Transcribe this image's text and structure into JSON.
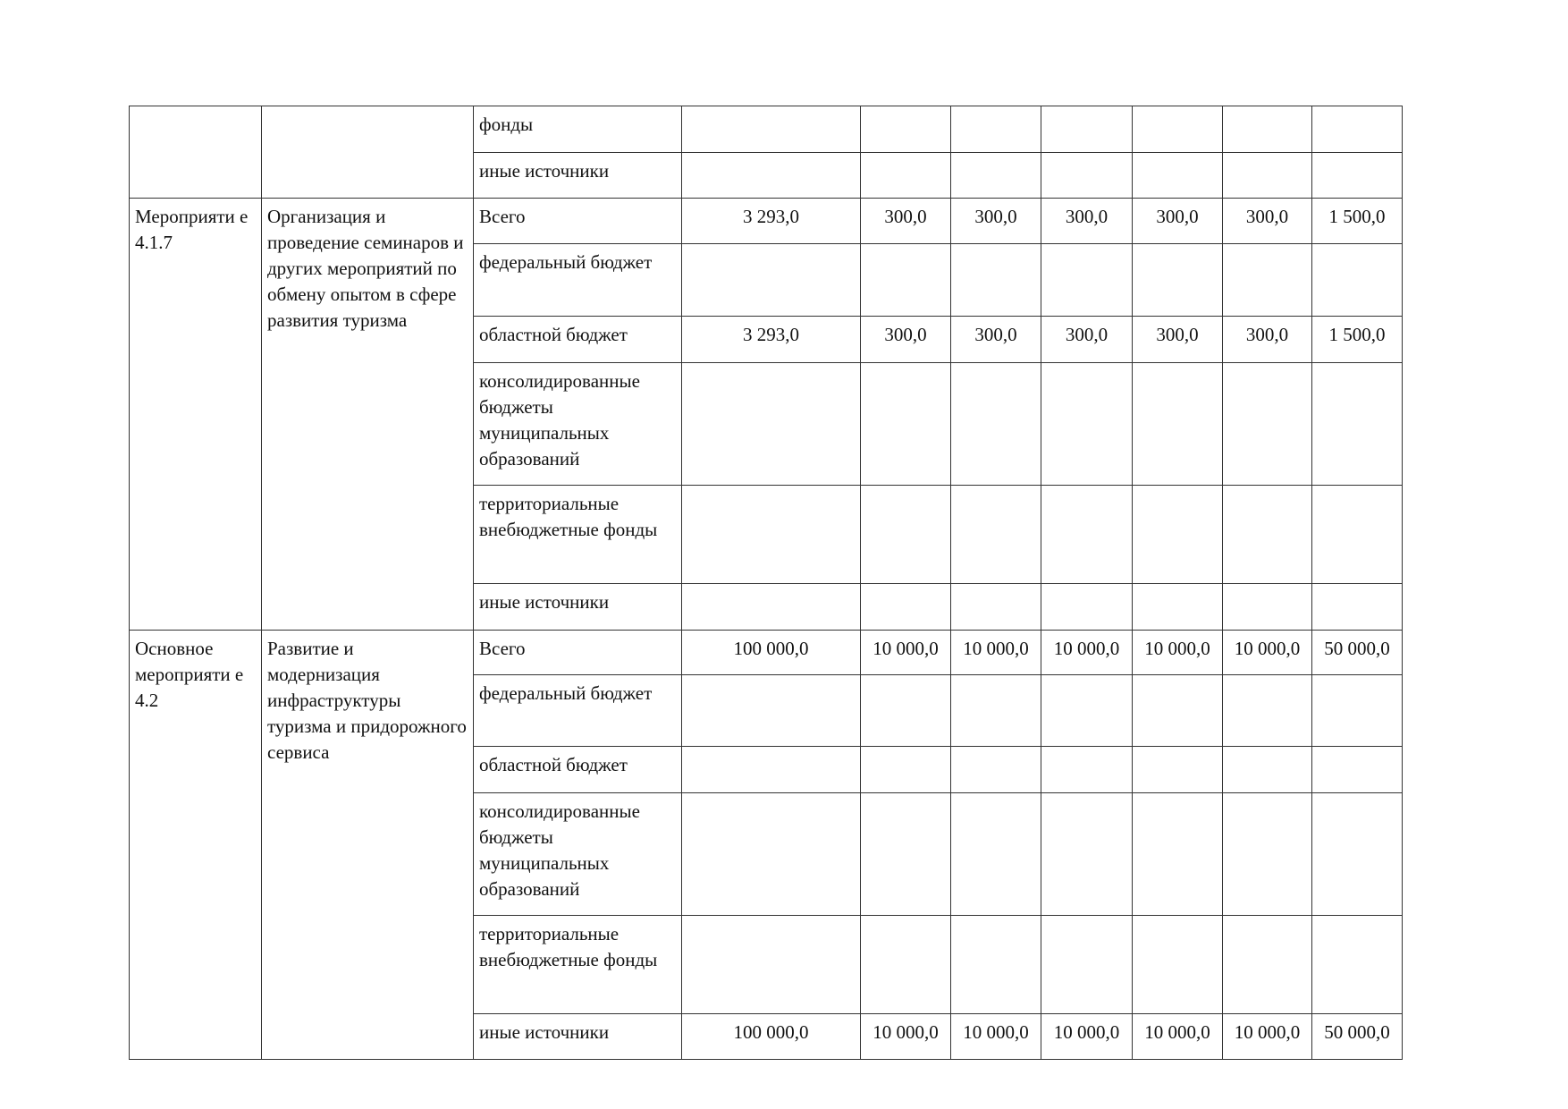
{
  "sections": [
    {
      "code": "",
      "name": "",
      "rows": [
        {
          "source": "фонды",
          "values": [
            "",
            "",
            "",
            "",
            "",
            "",
            ""
          ]
        },
        {
          "source": "иные источники",
          "values": [
            "",
            "",
            "",
            "",
            "",
            "",
            ""
          ]
        }
      ]
    },
    {
      "code": "Мероприяти е 4.1.7",
      "name": "Организация и проведение семинаров и других мероприятий по обмену опытом в сфере развития туризма",
      "rows": [
        {
          "source": "Всего",
          "values": [
            "3 293,0",
            "300,0",
            "300,0",
            "300,0",
            "300,0",
            "300,0",
            "1 500,0"
          ]
        },
        {
          "source": "федеральный бюджет",
          "values": [
            "",
            "",
            "",
            "",
            "",
            "",
            ""
          ]
        },
        {
          "source": "областной бюджет",
          "values": [
            "3 293,0",
            "300,0",
            "300,0",
            "300,0",
            "300,0",
            "300,0",
            "1 500,0"
          ]
        },
        {
          "source": "консолидированные бюджеты муниципальных образований",
          "values": [
            "",
            "",
            "",
            "",
            "",
            "",
            ""
          ]
        },
        {
          "source": "территориальные внебюджетные фонды",
          "values": [
            "",
            "",
            "",
            "",
            "",
            "",
            ""
          ]
        },
        {
          "source": "иные источники",
          "values": [
            "",
            "",
            "",
            "",
            "",
            "",
            ""
          ]
        }
      ]
    },
    {
      "code": "Основное мероприяти е 4.2",
      "name": "Развитие и модернизация инфраструктуры туризма и придорожного сервиса",
      "rows": [
        {
          "source": "Всего",
          "values": [
            "100 000,0",
            "10 000,0",
            "10 000,0",
            "10 000,0",
            "10 000,0",
            "10 000,0",
            "50 000,0"
          ]
        },
        {
          "source": "федеральный бюджет",
          "values": [
            "",
            "",
            "",
            "",
            "",
            "",
            ""
          ]
        },
        {
          "source": "областной бюджет",
          "values": [
            "",
            "",
            "",
            "",
            "",
            "",
            ""
          ]
        },
        {
          "source": "консолидированные бюджеты муниципальных образований",
          "values": [
            "",
            "",
            "",
            "",
            "",
            "",
            ""
          ]
        },
        {
          "source": "территориальные внебюджетные фонды",
          "values": [
            "",
            "",
            "",
            "",
            "",
            "",
            ""
          ]
        },
        {
          "source": "иные источники",
          "values": [
            "100 000,0",
            "10 000,0",
            "10 000,0",
            "10 000,0",
            "10 000,0",
            "10 000,0",
            "50 000,0"
          ]
        }
      ]
    }
  ]
}
